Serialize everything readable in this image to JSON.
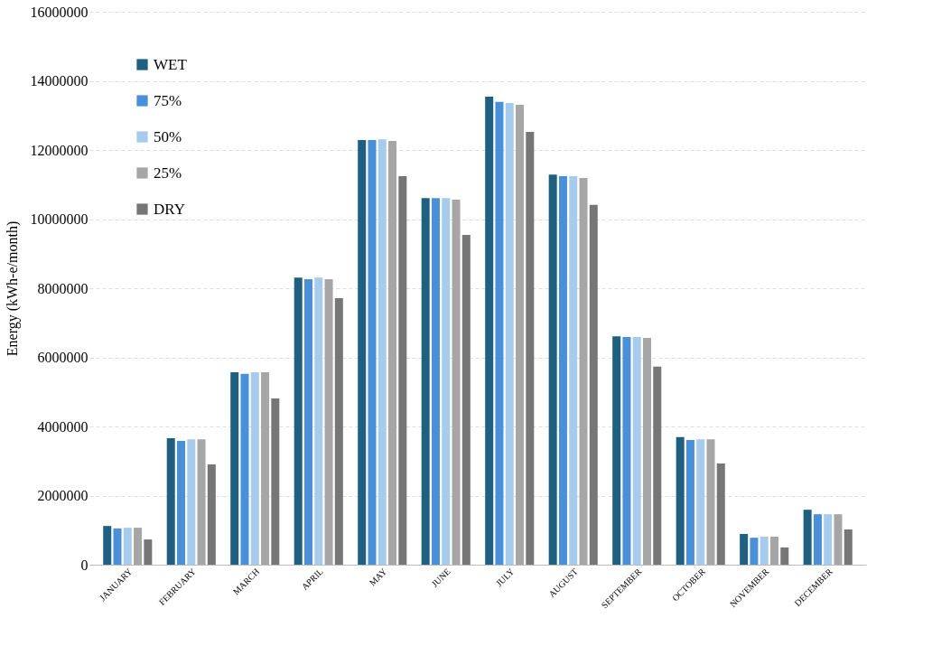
{
  "chart_data": {
    "type": "bar",
    "ylabel": "Energy (kWh-e/month)",
    "categories": [
      "JANUARY",
      "FEBRUARY",
      "MARCH",
      "APRIL",
      "MAY",
      "JUNE",
      "JULY",
      "AUGUST",
      "SEPTEMBER",
      "OCTOBER",
      "NOVEMBER",
      "DECEMBER"
    ],
    "series": [
      {
        "name": "WET",
        "color": "#1f5f80",
        "values": [
          1120000,
          3660000,
          5570000,
          8310000,
          12290000,
          10610000,
          13540000,
          11290000,
          6610000,
          3690000,
          890000,
          1590000
        ]
      },
      {
        "name": "75%",
        "color": "#4a90d9",
        "values": [
          1050000,
          3580000,
          5520000,
          8260000,
          12290000,
          10610000,
          13390000,
          11240000,
          6590000,
          3610000,
          780000,
          1460000
        ]
      },
      {
        "name": "50%",
        "color": "#a7cbec",
        "values": [
          1070000,
          3630000,
          5570000,
          8310000,
          12310000,
          10610000,
          13360000,
          11240000,
          6590000,
          3630000,
          810000,
          1460000
        ]
      },
      {
        "name": "25%",
        "color": "#a6a6a6",
        "values": [
          1070000,
          3630000,
          5570000,
          8260000,
          12260000,
          10560000,
          13310000,
          11190000,
          6560000,
          3630000,
          810000,
          1460000
        ]
      },
      {
        "name": "DRY",
        "color": "#767676",
        "values": [
          730000,
          2900000,
          4810000,
          7710000,
          11240000,
          9540000,
          12520000,
          10410000,
          5730000,
          2930000,
          500000,
          1020000
        ]
      }
    ],
    "ylim": [
      0,
      16000000
    ],
    "yticks": [
      0,
      2000000,
      4000000,
      6000000,
      8000000,
      10000000,
      12000000,
      14000000,
      16000000
    ],
    "grid": "y",
    "legend": "top left"
  }
}
